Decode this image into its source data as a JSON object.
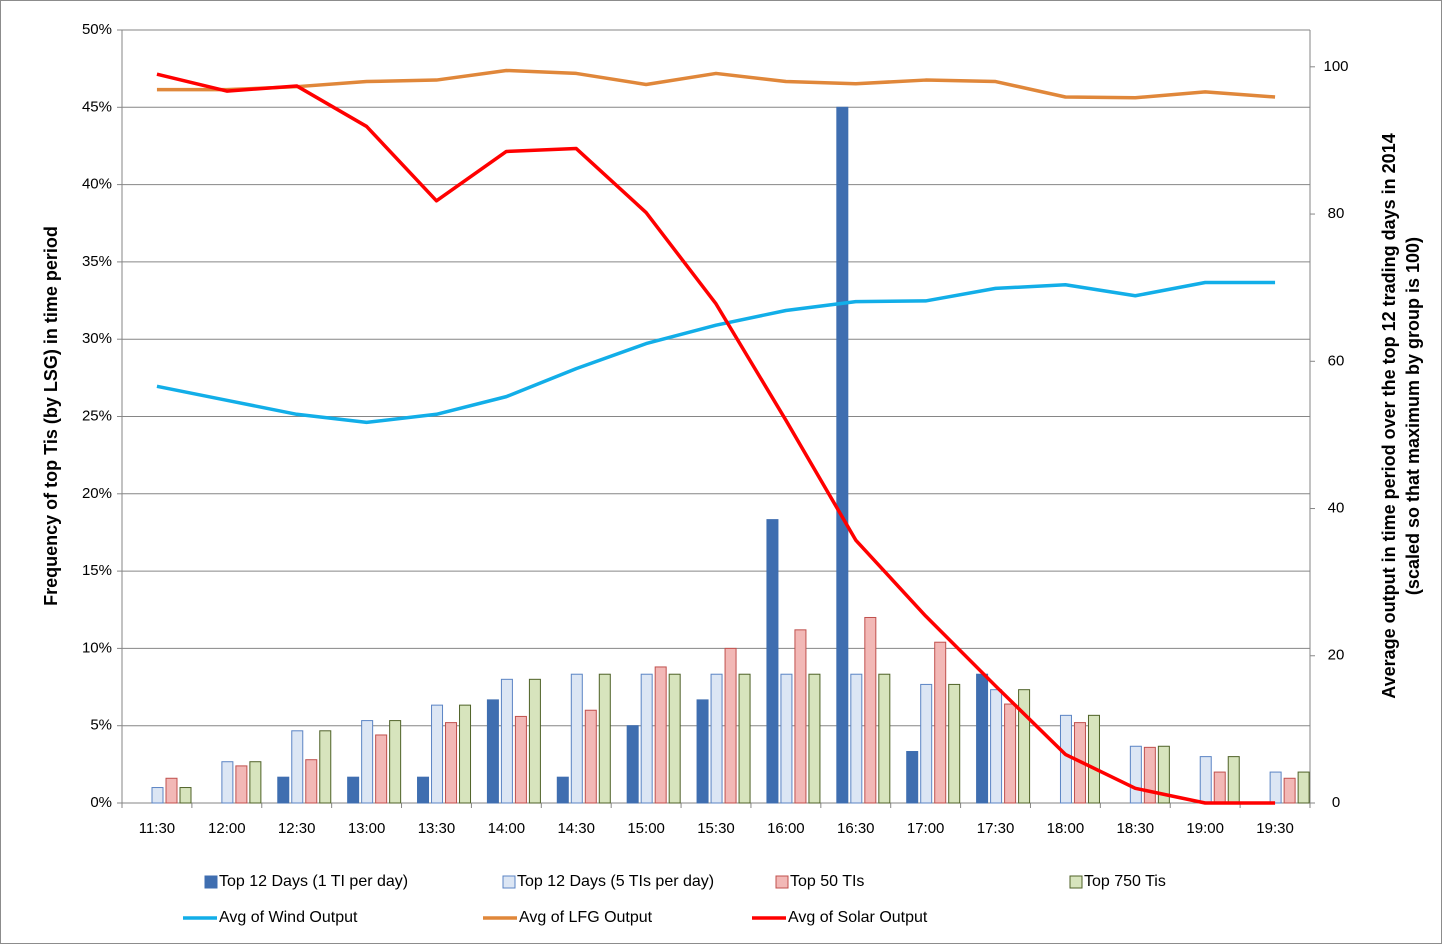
{
  "chart_data": {
    "type": "bar_line",
    "y_label": "Frequency of top Tis (by LSG) in time period",
    "y2_label": [
      "Average output in time period over the top 12 trading days in 2014",
      "(scaled so that maximum by group is 100)"
    ],
    "categories": [
      "11:30",
      "12:00",
      "12:30",
      "13:00",
      "13:30",
      "14:00",
      "14:30",
      "15:00",
      "15:30",
      "16:00",
      "16:30",
      "17:00",
      "17:30",
      "18:00",
      "18:30",
      "19:00",
      "19:30"
    ],
    "ylim": [
      0,
      50
    ],
    "yticks": [
      {
        "value": 0,
        "label": "0%"
      },
      {
        "value": 5,
        "label": "5%"
      },
      {
        "value": 10,
        "label": "10%"
      },
      {
        "value": 15,
        "label": "15%"
      },
      {
        "value": 20,
        "label": "20%"
      },
      {
        "value": 25,
        "label": "25%"
      },
      {
        "value": 30,
        "label": "30%"
      },
      {
        "value": 35,
        "label": "35%"
      },
      {
        "value": 40,
        "label": "40%"
      },
      {
        "value": 45,
        "label": "45%"
      },
      {
        "value": 50,
        "label": "50%"
      }
    ],
    "y2lim": [
      0,
      105
    ],
    "y2ticks": [
      0,
      20,
      40,
      60,
      80,
      100
    ],
    "grid": true,
    "legend": "bottom",
    "series": [
      {
        "name": "Top 12 Days (1 TI per day)",
        "type": "bar",
        "color": "#3f6eb0",
        "stroke": "#3f6eb0",
        "values": [
          0,
          0,
          1.67,
          1.67,
          1.67,
          6.67,
          1.67,
          5.0,
          6.67,
          18.33,
          45,
          3.33,
          8.33,
          0,
          0,
          0,
          0
        ]
      },
      {
        "name": "Top 12 Days (5 TIs per day)",
        "type": "bar",
        "color": "#dce6f4",
        "stroke": "#5b84c4",
        "values": [
          1.0,
          2.67,
          4.67,
          5.33,
          6.33,
          8.0,
          8.33,
          8.33,
          8.33,
          8.33,
          8.33,
          7.67,
          7.33,
          5.67,
          3.67,
          3.0,
          2.0
        ]
      },
      {
        "name": "Top 50 TIs",
        "type": "bar",
        "color": "#f2b8b6",
        "stroke": "#c0504d",
        "values": [
          1.6,
          2.4,
          2.8,
          4.4,
          5.2,
          5.6,
          6.0,
          8.8,
          10.0,
          11.2,
          12.0,
          10.4,
          6.4,
          5.2,
          3.6,
          2.0,
          1.6
        ]
      },
      {
        "name": "Top 750 Tis",
        "type": "bar",
        "color": "#d7e4bd",
        "stroke": "#4f6228",
        "values": [
          1.0,
          2.67,
          4.67,
          5.33,
          6.33,
          8.0,
          8.33,
          8.33,
          8.33,
          8.33,
          8.33,
          7.67,
          7.33,
          5.67,
          3.67,
          3.0,
          2.0
        ]
      },
      {
        "name": "Avg of Wind Output",
        "type": "line",
        "axis": "y2",
        "color": "#12aee8",
        "values": [
          56.6,
          54.7,
          52.8,
          51.7,
          52.8,
          55.2,
          59.0,
          62.4,
          64.9,
          66.9,
          68.1,
          68.2,
          69.9,
          70.4,
          68.9,
          70.7,
          70.7
        ]
      },
      {
        "name": "Avg of LFG Output",
        "type": "line",
        "axis": "y2",
        "color": "#e0873a",
        "values": [
          96.9,
          96.9,
          97.3,
          98.0,
          98.2,
          99.5,
          99.1,
          97.6,
          99.1,
          98.0,
          97.7,
          98.2,
          98.0,
          95.9,
          95.8,
          96.6,
          95.9
        ]
      },
      {
        "name": "Avg of Solar Output",
        "type": "line",
        "axis": "y2",
        "color": "#ff0000",
        "values": [
          99.0,
          96.7,
          97.4,
          91.9,
          81.8,
          88.5,
          88.9,
          80.2,
          67.8,
          52.0,
          35.7,
          25.4,
          15.9,
          6.6,
          2.0,
          0,
          0
        ]
      }
    ]
  }
}
